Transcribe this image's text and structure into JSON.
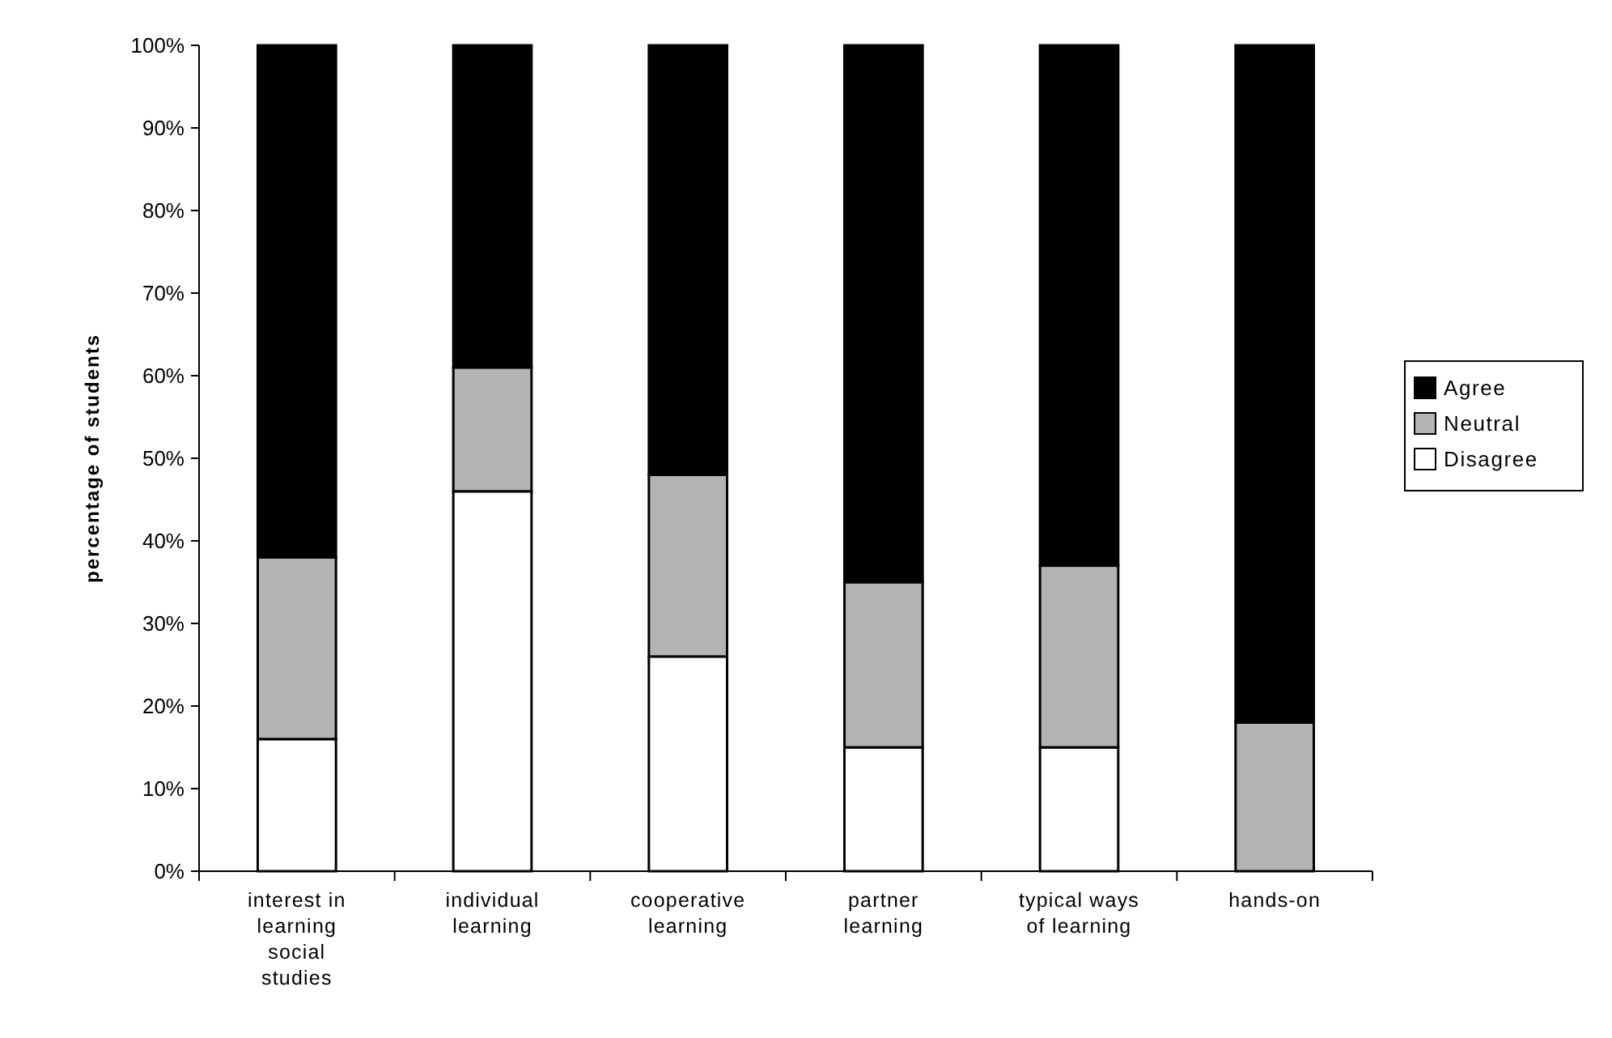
{
  "chart_data": {
    "type": "bar",
    "stacked": true,
    "ylabel": "percentage of students",
    "categories": [
      "interest in learning social studies",
      "individual learning",
      "cooperative learning",
      "partner learning",
      "typical ways of learning",
      "hands-on"
    ],
    "series": [
      {
        "name": "Disagree",
        "color": "#ffffff",
        "values": [
          16,
          46,
          26,
          15,
          15,
          0
        ]
      },
      {
        "name": "Neutral",
        "color": "#b4b4b4",
        "values": [
          22,
          15,
          22,
          20,
          22,
          18
        ]
      },
      {
        "name": "Agree",
        "color": "#000000",
        "values": [
          62,
          39,
          52,
          65,
          63,
          82
        ]
      }
    ],
    "ylim": [
      0,
      100
    ],
    "yticks": [
      {
        "value": 0,
        "label": "0%"
      },
      {
        "value": 10,
        "label": "10%"
      },
      {
        "value": 20,
        "label": "20%"
      },
      {
        "value": 30,
        "label": "30%"
      },
      {
        "value": 40,
        "label": "40%"
      },
      {
        "value": 50,
        "label": "50%"
      },
      {
        "value": 60,
        "label": "60%"
      },
      {
        "value": 70,
        "label": "70%"
      },
      {
        "value": 80,
        "label": "80%"
      },
      {
        "value": 90,
        "label": "90%"
      },
      {
        "value": 100,
        "label": "100%"
      }
    ],
    "grid": false,
    "legend": "right"
  }
}
